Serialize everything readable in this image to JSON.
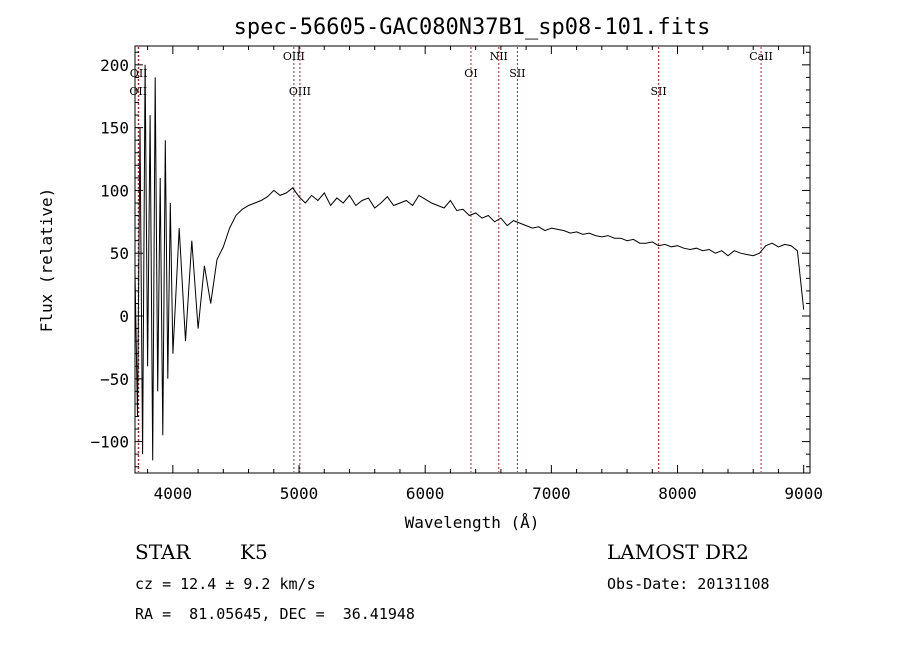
{
  "chart_data": {
    "type": "line",
    "title": "spec-56605-GAC080N37B1_sp08-101.fits",
    "xlabel": "Wavelength (Å)",
    "ylabel": "Flux (relative)",
    "xlim": [
      3700,
      9050
    ],
    "ylim": [
      -125,
      215
    ],
    "xticks": [
      "4000",
      "5000",
      "6000",
      "7000",
      "8000",
      "9000"
    ],
    "xtick_values": [
      4000,
      5000,
      6000,
      7000,
      8000,
      9000
    ],
    "yticks": [
      "−100",
      "−50",
      "0",
      "50",
      "100",
      "150",
      "200"
    ],
    "ytick_values": [
      -100,
      -50,
      0,
      50,
      100,
      150,
      200
    ],
    "grid": false,
    "series": [
      {
        "x": [
          3700,
          3720,
          3740,
          3760,
          3780,
          3800,
          3820,
          3840,
          3860,
          3880,
          3900,
          3920,
          3940,
          3960,
          3980,
          4000,
          4050,
          4100,
          4150,
          4200,
          4250,
          4300,
          4350,
          4400,
          4450,
          4500,
          4550,
          4600,
          4650,
          4700,
          4750,
          4800,
          4850,
          4900,
          4950,
          5000,
          5050,
          5100,
          5150,
          5200,
          5250,
          5300,
          5350,
          5400,
          5450,
          5500,
          5550,
          5600,
          5650,
          5700,
          5750,
          5800,
          5850,
          5900,
          5950,
          6000,
          6050,
          6100,
          6150,
          6200,
          6250,
          6300,
          6350,
          6400,
          6450,
          6500,
          6550,
          6600,
          6650,
          6700,
          6750,
          6800,
          6850,
          6900,
          6950,
          7000,
          7050,
          7100,
          7150,
          7200,
          7250,
          7300,
          7350,
          7400,
          7450,
          7500,
          7550,
          7600,
          7650,
          7700,
          7750,
          7800,
          7850,
          7900,
          7950,
          8000,
          8050,
          8100,
          8150,
          8200,
          8250,
          8300,
          8350,
          8400,
          8450,
          8500,
          8550,
          8600,
          8650,
          8700,
          8750,
          8800,
          8850,
          8900,
          8950,
          9000
        ],
        "y": [
          35,
          -80,
          150,
          -110,
          200,
          -40,
          160,
          -115,
          190,
          -60,
          110,
          -95,
          140,
          -50,
          90,
          -30,
          70,
          -20,
          60,
          -10,
          40,
          10,
          45,
          55,
          70,
          80,
          85,
          88,
          90,
          92,
          95,
          100,
          96,
          98,
          102,
          95,
          90,
          96,
          92,
          98,
          88,
          94,
          90,
          96,
          88,
          92,
          94,
          86,
          90,
          95,
          88,
          90,
          92,
          88,
          96,
          93,
          90,
          88,
          86,
          92,
          84,
          85,
          80,
          82,
          78,
          80,
          75,
          78,
          72,
          76,
          74,
          72,
          70,
          71,
          68,
          70,
          69,
          68,
          66,
          67,
          65,
          66,
          64,
          63,
          64,
          62,
          62,
          60,
          61,
          58,
          58,
          59,
          56,
          57,
          55,
          56,
          54,
          53,
          54,
          52,
          53,
          50,
          52,
          48,
          52,
          50,
          49,
          48,
          50,
          56,
          58,
          55,
          57,
          56,
          52,
          5
        ]
      }
    ],
    "emission_lines": [
      {
        "label": "OII",
        "wavelength": 3726,
        "row": 2
      },
      {
        "label": "OII",
        "wavelength": 3729,
        "row": 1
      },
      {
        "label": "OIII",
        "wavelength": 4959,
        "row": 0
      },
      {
        "label": "OIII",
        "wavelength": 5007,
        "row": 2
      },
      {
        "label": "OI",
        "wavelength": 6363,
        "row": 1
      },
      {
        "label": "NII",
        "wavelength": 6583,
        "row": 0
      },
      {
        "label": "SII",
        "wavelength": 6731,
        "row": 1
      },
      {
        "label": "SII",
        "wavelength": 7850,
        "row": 2
      },
      {
        "label": "CaII",
        "wavelength": 8662,
        "row": 0
      }
    ],
    "line_marker_color": "#b22222"
  },
  "info": {
    "object_class": "STAR",
    "subclass": "K5",
    "survey": "LAMOST DR2",
    "cz": "cz = 12.4 ± 9.2 km/s",
    "obs_date": "Obs-Date: 20131108",
    "coords": "RA =  81.05645, DEC =  36.41948"
  }
}
